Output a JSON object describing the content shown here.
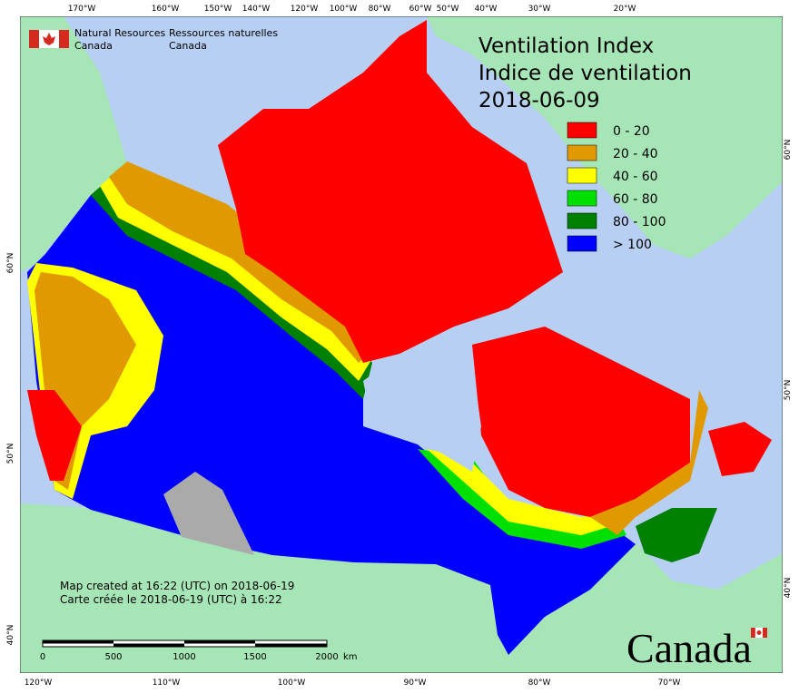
{
  "header": {
    "agency_en": [
      "Natural Resources",
      "Canada"
    ],
    "agency_fr": [
      "Ressources naturelles",
      "Canada"
    ]
  },
  "title": [
    "Ventilation Index",
    "Indice de ventilation",
    "2018-06-09"
  ],
  "legend": [
    {
      "label": "0 - 20",
      "color": "#ff0000"
    },
    {
      "label": "20 - 40",
      "color": "#e09a00"
    },
    {
      "label": "40 - 60",
      "color": "#ffff00"
    },
    {
      "label": "60 - 80",
      "color": "#00e000"
    },
    {
      "label": "80 - 100",
      "color": "#008000"
    },
    {
      "label": "> 100",
      "color": "#0000ff"
    }
  ],
  "notes": [
    "Map created at 16:22 (UTC) on 2018-06-19",
    "Carte créée le 2018-06-19 (UTC) à 16:22"
  ],
  "scale_bar": {
    "labels": [
      "0",
      "500",
      "1000",
      "1500",
      "2000"
    ],
    "unit": "km"
  },
  "graticule": {
    "top": [
      "170°W",
      "160°W",
      "150°W",
      "140°W",
      "120°W",
      "100°W",
      "80°W",
      "60°W",
      "50°W",
      "40°W",
      "30°W",
      "20°W"
    ],
    "bottom": [
      "120°W",
      "110°W",
      "100°W",
      "90°W",
      "80°W",
      "70°W"
    ],
    "left": [
      "60°N",
      "50°N",
      "40°N"
    ],
    "right": [
      "60°N",
      "50°N",
      "40°N"
    ]
  },
  "wordmark": "Canada"
}
